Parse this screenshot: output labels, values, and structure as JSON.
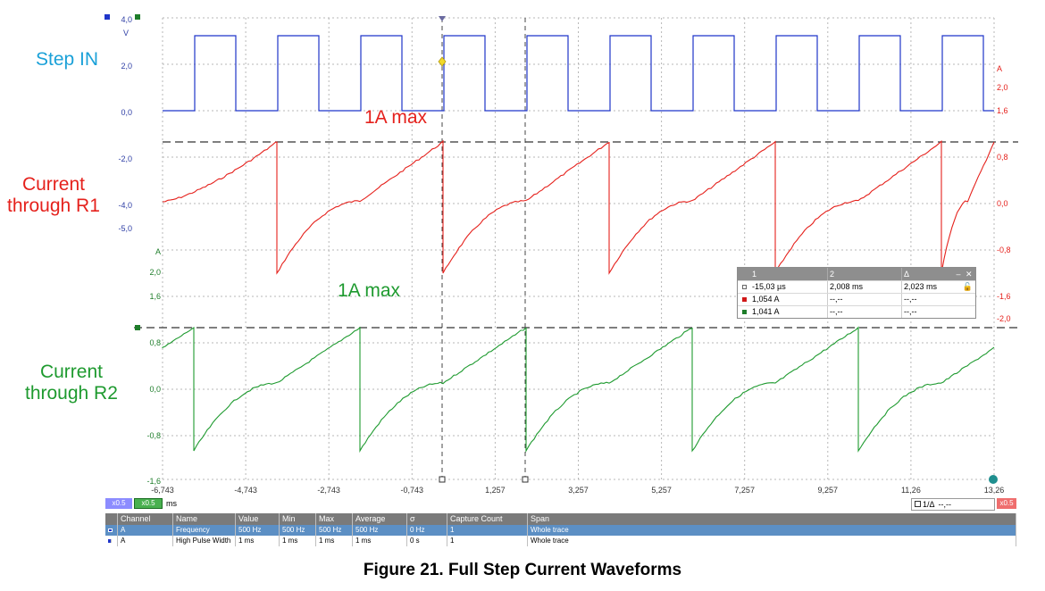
{
  "labels": {
    "step_in": "Step IN",
    "r1_line1": "Current",
    "r1_line2": "through R1",
    "r2_line1": "Current",
    "r2_line2": "through R2",
    "r1_max": "1A max",
    "r2_max": "1A max"
  },
  "axes": {
    "left_blue_ticks": [
      "4,0",
      "2,0",
      "0,0",
      "-2,0",
      "-4,0",
      "-5,0"
    ],
    "left_blue_unit": "V",
    "left_green_unit": "A",
    "left_green_ticks": [
      "2,0",
      "1,6",
      "0,8",
      "0,0",
      "-0,8",
      "-1,6"
    ],
    "right_red_unit": "A",
    "right_red_ticks": [
      "2,0",
      "1,6",
      "0,8",
      "0,0",
      "-0,8",
      "-1,6",
      "-2,0"
    ],
    "x_ticks": [
      "-6,743",
      "-4,743",
      "-2,743",
      "-0,743",
      "1,257",
      "3,257",
      "5,257",
      "7,257",
      "9,257",
      "11,26",
      "13,26"
    ]
  },
  "colors": {
    "blue_trace": "#1f35c9",
    "red_trace": "#e5211c",
    "green_trace": "#1e9a2f",
    "grid": "#b7b7b7"
  },
  "readout": {
    "headers": [
      "1",
      "2",
      "Δ"
    ],
    "rows": [
      {
        "color": "#8a8a8a",
        "c1": "-15,03 µs",
        "c2": "2,008 ms",
        "c3": "2,023 ms"
      },
      {
        "color": "#d01818",
        "c1": "1,054 A",
        "c2": "--,--",
        "c3": "--,--"
      },
      {
        "color": "#1e7d2a",
        "c1": "1,041 A",
        "c2": "--,--",
        "c3": "--,--"
      }
    ],
    "minimize_icon": "minus-icon",
    "close_icon": "close-icon"
  },
  "toolbar": {
    "zoom_blue": "x0.5",
    "zoom_green": "x0.5",
    "unit": "ms",
    "delta_label": "1/Δ",
    "delta_value": "--,--",
    "zoom_red": "x0.5"
  },
  "measurements": {
    "headers": [
      "Channel",
      "Name",
      "Value",
      "Min",
      "Max",
      "Average",
      "σ",
      "Capture Count",
      "Span"
    ],
    "rows": [
      {
        "channel": "A",
        "name": "Frequency",
        "value": "500 Hz",
        "min": "500 Hz",
        "max": "500 Hz",
        "average": "500 Hz",
        "sigma": "0 Hz",
        "count": "1",
        "span": "Whole trace"
      },
      {
        "channel": "A",
        "name": "High Pulse Width",
        "value": "1 ms",
        "min": "1 ms",
        "max": "1 ms",
        "average": "1 ms",
        "sigma": "0 s",
        "count": "1",
        "span": "Whole trace"
      }
    ]
  },
  "caption": "Figure 21. Full Step Current Waveforms"
}
